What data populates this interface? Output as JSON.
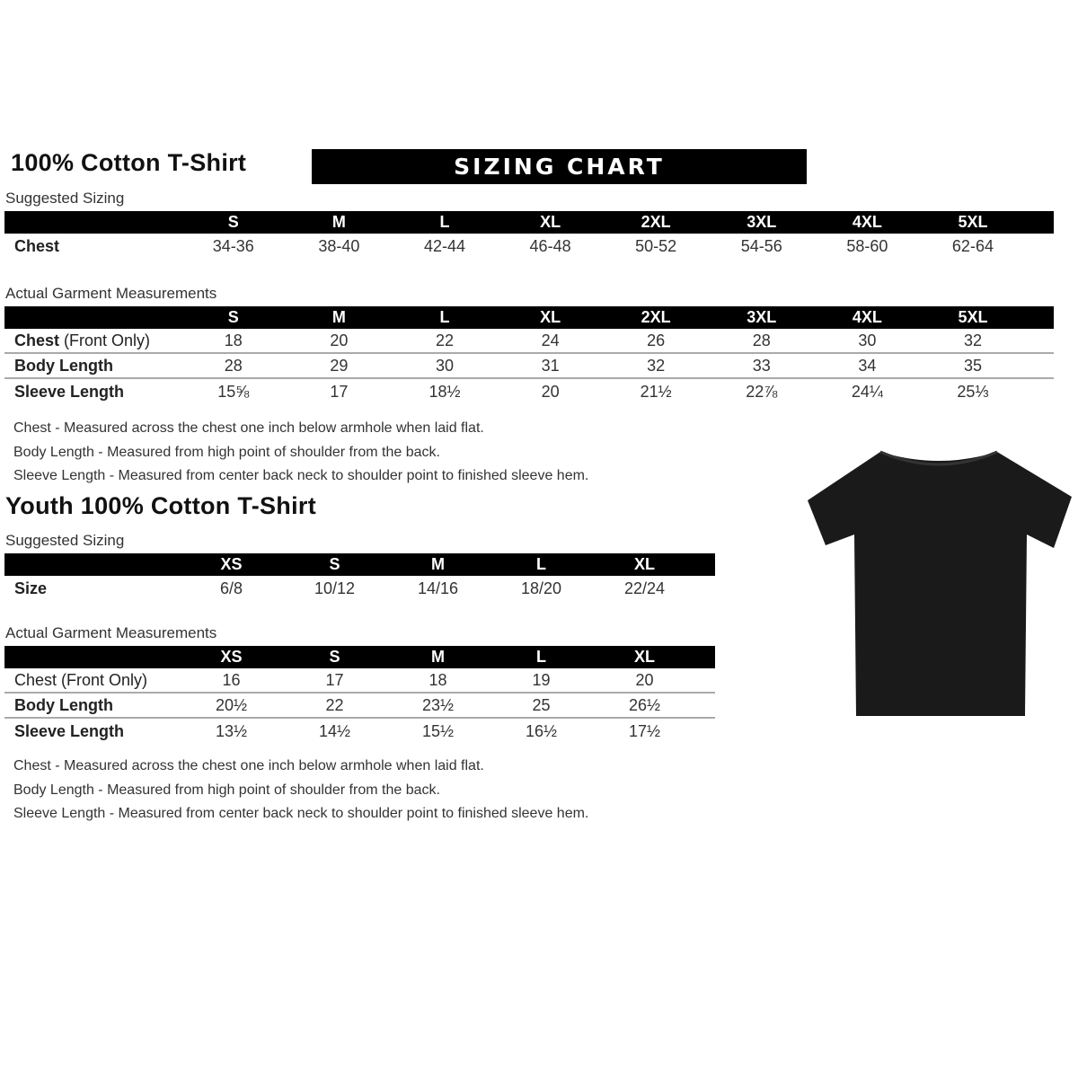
{
  "banner": "SIZING CHART",
  "adult": {
    "title": "100% Cotton T-Shirt",
    "suggested_label": "Suggested Sizing",
    "sizes": [
      "S",
      "M",
      "L",
      "XL",
      "2XL",
      "3XL",
      "4XL",
      "5XL"
    ],
    "suggested_rows": [
      {
        "label": "Chest",
        "values": [
          "34-36",
          "38-40",
          "42-44",
          "46-48",
          "50-52",
          "54-56",
          "58-60",
          "62-64"
        ]
      }
    ],
    "actual_label": "Actual Garment Measurements",
    "actual_rows": [
      {
        "label": "Chest",
        "label_suffix": " (Front Only)",
        "values": [
          "18",
          "20",
          "22",
          "24",
          "26",
          "28",
          "30",
          "32"
        ]
      },
      {
        "label": "Body Length",
        "values": [
          "28",
          "29",
          "30",
          "31",
          "32",
          "33",
          "34",
          "35"
        ]
      },
      {
        "label": "Sleeve Length",
        "values": [
          "15⅝",
          "17",
          "18½",
          "20",
          "21½",
          "22⅞",
          "24¼",
          "25⅓"
        ]
      }
    ],
    "notes": [
      "Chest - Measured across the chest one inch below armhole when laid flat.",
      "Body Length - Measured from high point of shoulder from the back.",
      "Sleeve Length - Measured from center back neck to shoulder point to finished sleeve hem."
    ]
  },
  "youth": {
    "title": "Youth 100% Cotton T-Shirt",
    "suggested_label": "Suggested Sizing",
    "sizes": [
      "XS",
      "S",
      "M",
      "L",
      "XL"
    ],
    "suggested_rows": [
      {
        "label": "Size",
        "values": [
          "6/8",
          "10/12",
          "14/16",
          "18/20",
          "22/24"
        ]
      }
    ],
    "actual_label": "Actual Garment Measurements",
    "actual_rows": [
      {
        "label": "Chest (Front Only)",
        "values": [
          "16",
          "17",
          "18",
          "19",
          "20"
        ]
      },
      {
        "label": "Body Length",
        "values": [
          "20½",
          "22",
          "23½",
          "25",
          "26½"
        ]
      },
      {
        "label": "Sleeve Length",
        "values": [
          "13½",
          "14½",
          "15½",
          "16½",
          "17½"
        ]
      }
    ],
    "notes": [
      "Chest - Measured across the chest one inch below armhole when laid flat.",
      "Body Length - Measured from high point of shoulder from the back.",
      "Sleeve Length - Measured from center back neck to shoulder point to finished sleeve hem."
    ]
  },
  "colors": {
    "header_bg": "#000000",
    "shirt": "#1a1a1a"
  }
}
